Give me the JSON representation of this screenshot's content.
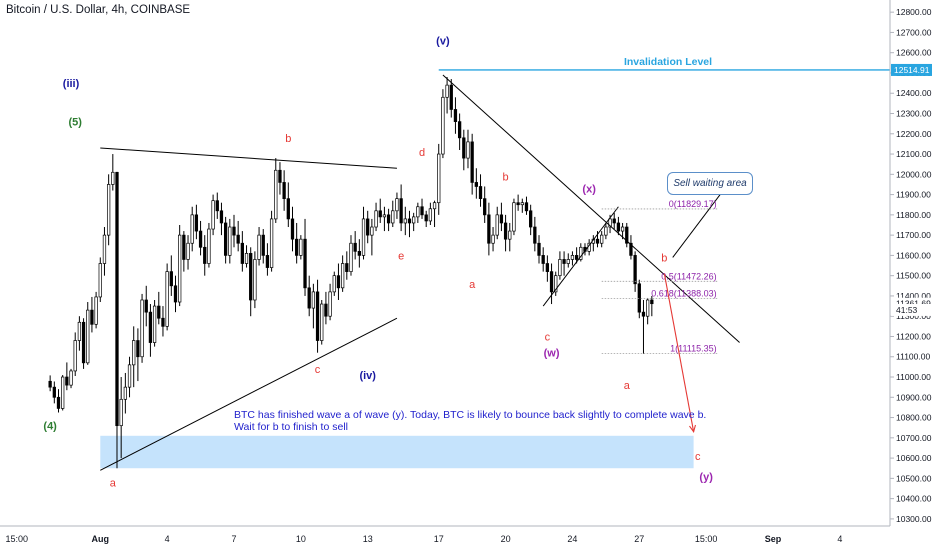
{
  "header": {
    "title": "Bitcoin / U.S. Dollar, 4h, COINBASE"
  },
  "note": {
    "line1": "BTC has finished wave a of wave (y). Today, BTC is likely to bounce back slightly to complete wave b.",
    "line2": "Wait for b to finish to sell"
  },
  "callout": {
    "text": "Sell waiting area"
  },
  "colors": {
    "up_candle": "#ffffff",
    "candle_stroke": "#000000",
    "resistance_line": "#29a5e0",
    "sell_zone": "#bbdefb",
    "wave_red": "#e53935",
    "wave_blue": "#1a1aa0",
    "wave_purple": "#9c27b0",
    "wave_green": "#2e7d32",
    "fib_label": "#8e24aa",
    "arrow": "#e53935"
  },
  "chart_data": {
    "type": "candlestick",
    "title": "Bitcoin / U.S. Dollar, 4h, COINBASE",
    "y_axis": {
      "position": "right",
      "ticks": [
        10300,
        10400,
        10500,
        10600,
        10700,
        10800,
        10900,
        11000,
        11100,
        11200,
        11300,
        11400,
        11500,
        11600,
        11700,
        11800,
        11900,
        12000,
        12100,
        12200,
        12300,
        12400,
        12500,
        12600,
        12700,
        12800
      ],
      "tick_labels": [
        "10300.00",
        "10400.00",
        "10500.00",
        "10600.00",
        "10700.00",
        "10800.00",
        "10900.00",
        "11000.00",
        "11100.00",
        "11200.00",
        "11300.00",
        "11400.00",
        "11500.00",
        "11600.00",
        "11700.00",
        "11800.00",
        "11900.00",
        "12000.00",
        "12100.00",
        "12200.00",
        "12300.00",
        "12400.00",
        "12500.00",
        "12600.00",
        "12700.00",
        "12800.00"
      ],
      "range": [
        10265,
        12860
      ],
      "price_tags": [
        {
          "label": "12514.91",
          "value": 12514.91,
          "style": "blue"
        },
        {
          "label": "11361.69",
          "value": 11361.69,
          "style": "plain"
        },
        {
          "label": "41:53",
          "value": 11331,
          "style": "plain"
        }
      ]
    },
    "x_axis": {
      "ticks": [
        "15:00",
        "Aug",
        "4",
        "7",
        "10",
        "13",
        "17",
        "20",
        "24",
        "27",
        "15:00",
        "Sep",
        "4"
      ],
      "tick_index": [
        -8,
        12,
        28,
        44,
        60,
        76,
        93,
        109,
        125,
        141,
        157,
        173,
        189
      ],
      "range_index": [
        -12,
        201
      ]
    },
    "candles": [
      [
        10979,
        11008,
        10930,
        10950
      ],
      [
        10950,
        10978,
        10870,
        10900
      ],
      [
        10900,
        10940,
        10825,
        10845
      ],
      [
        10845,
        11010,
        10835,
        11000
      ],
      [
        11000,
        11072,
        10935,
        10960
      ],
      [
        10960,
        11040,
        10945,
        11030
      ],
      [
        11030,
        11220,
        11005,
        11180
      ],
      [
        11180,
        11300,
        11130,
        11270
      ],
      [
        11270,
        11290,
        11040,
        11070
      ],
      [
        11070,
        11370,
        11060,
        11330
      ],
      [
        11330,
        11395,
        11220,
        11260
      ],
      [
        11260,
        11420,
        11240,
        11395
      ],
      [
        11395,
        11590,
        11370,
        11560
      ],
      [
        11560,
        11740,
        11500,
        11700
      ],
      [
        11700,
        12000,
        11650,
        11950
      ],
      [
        11950,
        12100,
        11920,
        12010
      ],
      [
        12010,
        12012,
        10550,
        10760
      ],
      [
        10760,
        11000,
        10600,
        10890
      ],
      [
        10890,
        11020,
        10820,
        10950
      ],
      [
        10950,
        11100,
        10900,
        11060
      ],
      [
        11060,
        11250,
        10950,
        11180
      ],
      [
        11180,
        11240,
        10980,
        11100
      ],
      [
        11100,
        11410,
        11070,
        11380
      ],
      [
        11380,
        11450,
        11250,
        11320
      ],
      [
        11320,
        11360,
        11100,
        11170
      ],
      [
        11170,
        11380,
        11150,
        11350
      ],
      [
        11350,
        11420,
        11260,
        11290
      ],
      [
        11290,
        11350,
        11200,
        11250
      ],
      [
        11250,
        11560,
        11230,
        11520
      ],
      [
        11520,
        11600,
        11400,
        11450
      ],
      [
        11450,
        11500,
        11320,
        11370
      ],
      [
        11370,
        11750,
        11350,
        11700
      ],
      [
        11700,
        11720,
        11520,
        11580
      ],
      [
        11580,
        11700,
        11530,
        11660
      ],
      [
        11660,
        11840,
        11620,
        11800
      ],
      [
        11800,
        11850,
        11680,
        11720
      ],
      [
        11720,
        11770,
        11600,
        11640
      ],
      [
        11640,
        11700,
        11500,
        11560
      ],
      [
        11560,
        11760,
        11540,
        11730
      ],
      [
        11730,
        11900,
        11700,
        11870
      ],
      [
        11870,
        11910,
        11780,
        11820
      ],
      [
        11820,
        11860,
        11700,
        11760
      ],
      [
        11760,
        11790,
        11560,
        11600
      ],
      [
        11600,
        11780,
        11560,
        11740
      ],
      [
        11740,
        11800,
        11640,
        11700
      ],
      [
        11700,
        11770,
        11620,
        11660
      ],
      [
        11660,
        11720,
        11520,
        11560
      ],
      [
        11560,
        11650,
        11540,
        11610
      ],
      [
        11610,
        11640,
        11300,
        11380
      ],
      [
        11380,
        11620,
        11340,
        11580
      ],
      [
        11580,
        11740,
        11550,
        11700
      ],
      [
        11700,
        11730,
        11560,
        11600
      ],
      [
        11600,
        11660,
        11500,
        11540
      ],
      [
        11540,
        11820,
        11520,
        11780
      ],
      [
        11780,
        12080,
        11760,
        12020
      ],
      [
        12020,
        12060,
        11900,
        11960
      ],
      [
        11960,
        12020,
        11820,
        11880
      ],
      [
        11880,
        11960,
        11740,
        11780
      ],
      [
        11780,
        11840,
        11620,
        11680
      ],
      [
        11680,
        11760,
        11560,
        11600
      ],
      [
        11600,
        11700,
        11580,
        11680
      ],
      [
        11680,
        11780,
        11400,
        11440
      ],
      [
        11440,
        11500,
        11300,
        11340
      ],
      [
        11340,
        11460,
        11240,
        11420
      ],
      [
        11420,
        11480,
        11120,
        11180
      ],
      [
        11180,
        11380,
        11160,
        11360
      ],
      [
        11360,
        11420,
        11260,
        11300
      ],
      [
        11300,
        11460,
        11280,
        11420
      ],
      [
        11420,
        11520,
        11400,
        11500
      ],
      [
        11500,
        11560,
        11380,
        11440
      ],
      [
        11440,
        11600,
        11420,
        11560
      ],
      [
        11560,
        11620,
        11480,
        11520
      ],
      [
        11520,
        11700,
        11500,
        11660
      ],
      [
        11660,
        11720,
        11580,
        11620
      ],
      [
        11620,
        11680,
        11540,
        11600
      ],
      [
        11600,
        11840,
        11580,
        11780
      ],
      [
        11780,
        11820,
        11660,
        11700
      ],
      [
        11700,
        11780,
        11600,
        11740
      ],
      [
        11740,
        11860,
        11720,
        11820
      ],
      [
        11820,
        11880,
        11760,
        11790
      ],
      [
        11790,
        11840,
        11720,
        11800
      ],
      [
        11800,
        11830,
        11720,
        11760
      ],
      [
        11760,
        11870,
        11740,
        11820
      ],
      [
        11820,
        11910,
        11780,
        11880
      ],
      [
        11880,
        11950,
        11720,
        11760
      ],
      [
        11760,
        11840,
        11700,
        11780
      ],
      [
        11780,
        11820,
        11690,
        11760
      ],
      [
        11760,
        11810,
        11720,
        11790
      ],
      [
        11790,
        11860,
        11760,
        11840
      ],
      [
        11840,
        11880,
        11780,
        11800
      ],
      [
        11800,
        11820,
        11740,
        11770
      ],
      [
        11770,
        11860,
        11750,
        11830
      ],
      [
        11830,
        11870,
        11740,
        11860
      ],
      [
        11860,
        12150,
        11800,
        12100
      ],
      [
        12100,
        12420,
        12080,
        12380
      ],
      [
        12380,
        12480,
        12300,
        12440
      ],
      [
        12440,
        12470,
        12280,
        12320
      ],
      [
        12320,
        12380,
        12200,
        12260
      ],
      [
        12260,
        12300,
        12120,
        12180
      ],
      [
        12180,
        12220,
        12020,
        12080
      ],
      [
        12080,
        12220,
        12030,
        12160
      ],
      [
        12160,
        12200,
        11900,
        11960
      ],
      [
        11960,
        12030,
        11880,
        11940
      ],
      [
        11940,
        12000,
        11840,
        11880
      ],
      [
        11880,
        11940,
        11760,
        11800
      ],
      [
        11800,
        11860,
        11600,
        11660
      ],
      [
        11660,
        11740,
        11620,
        11700
      ],
      [
        11700,
        11840,
        11680,
        11800
      ],
      [
        11800,
        11860,
        11720,
        11760
      ],
      [
        11760,
        11800,
        11620,
        11680
      ],
      [
        11680,
        11760,
        11620,
        11720
      ],
      [
        11720,
        11880,
        11700,
        11860
      ],
      [
        11860,
        11900,
        11820,
        11850
      ],
      [
        11850,
        11880,
        11810,
        11860
      ],
      [
        11860,
        11890,
        11800,
        11820
      ],
      [
        11820,
        11850,
        11700,
        11740
      ],
      [
        11740,
        11790,
        11620,
        11660
      ],
      [
        11660,
        11700,
        11560,
        11600
      ],
      [
        11600,
        11640,
        11520,
        11560
      ],
      [
        11560,
        11600,
        11470,
        11520
      ],
      [
        11520,
        11560,
        11360,
        11420
      ],
      [
        11420,
        11520,
        11400,
        11500
      ],
      [
        11500,
        11620,
        11480,
        11580
      ],
      [
        11580,
        11620,
        11500,
        11560
      ],
      [
        11560,
        11610,
        11540,
        11580
      ],
      [
        11580,
        11620,
        11550,
        11600
      ],
      [
        11600,
        11640,
        11560,
        11580
      ],
      [
        11580,
        11660,
        11570,
        11640
      ],
      [
        11640,
        11660,
        11600,
        11620
      ],
      [
        11620,
        11680,
        11600,
        11660
      ],
      [
        11660,
        11700,
        11620,
        11680
      ],
      [
        11680,
        11720,
        11640,
        11660
      ],
      [
        11660,
        11720,
        11640,
        11700
      ],
      [
        11700,
        11760,
        11680,
        11740
      ],
      [
        11740,
        11800,
        11710,
        11780
      ],
      [
        11780,
        11810,
        11730,
        11760
      ],
      [
        11760,
        11790,
        11700,
        11720
      ],
      [
        11720,
        11760,
        11680,
        11740
      ],
      [
        11740,
        11760,
        11640,
        11660
      ],
      [
        11660,
        11700,
        11580,
        11600
      ],
      [
        11600,
        11620,
        11420,
        11460
      ],
      [
        11460,
        11480,
        11290,
        11320
      ],
      [
        11320,
        11380,
        11115,
        11300
      ],
      [
        11300,
        11390,
        11260,
        11380
      ],
      [
        11380,
        11400,
        11300,
        11361.69
      ]
    ],
    "annotations": {
      "wave_labels": [
        {
          "text": "(iii)",
          "idx": 5,
          "price": 12430,
          "color": "wave_blue"
        },
        {
          "text": "(5)",
          "idx": 6,
          "price": 12240,
          "color": "wave_green"
        },
        {
          "text": "(4)",
          "idx": 0,
          "price": 10740,
          "color": "wave_green"
        },
        {
          "text": "a",
          "idx": 15,
          "price": 10460,
          "color": "wave_red"
        },
        {
          "text": "b",
          "idx": 57,
          "price": 12160,
          "color": "wave_red"
        },
        {
          "text": "c",
          "idx": 64,
          "price": 11020,
          "color": "wave_red"
        },
        {
          "text": "d",
          "idx": 89,
          "price": 12090,
          "color": "wave_red"
        },
        {
          "text": "e",
          "idx": 84,
          "price": 11580,
          "color": "wave_red"
        },
        {
          "text": "(iv)",
          "idx": 76,
          "price": 10990,
          "color": "wave_blue"
        },
        {
          "text": "(v)",
          "idx": 94,
          "price": 12640,
          "color": "wave_blue"
        },
        {
          "text": "a",
          "idx": 101,
          "price": 11440,
          "color": "wave_red"
        },
        {
          "text": "b",
          "idx": 109,
          "price": 11970,
          "color": "wave_red"
        },
        {
          "text": "c",
          "idx": 119,
          "price": 11180,
          "color": "wave_red"
        },
        {
          "text": "(w)",
          "idx": 120,
          "price": 11100,
          "color": "wave_purple"
        },
        {
          "text": "(x)",
          "idx": 129,
          "price": 11910,
          "color": "wave_purple"
        },
        {
          "text": "a",
          "idx": 138,
          "price": 10940,
          "color": "wave_red"
        },
        {
          "text": "b",
          "idx": 147,
          "price": 11570,
          "color": "wave_red"
        },
        {
          "text": "c",
          "idx": 155,
          "price": 10590,
          "color": "wave_red"
        },
        {
          "text": "(y)",
          "idx": 157,
          "price": 10490,
          "color": "wave_purple"
        }
      ],
      "resistance": {
        "label": "Invalidation Level",
        "value": 12514.91
      },
      "fib_levels": [
        {
          "label": "0(11829.17)",
          "value": 11829.17
        },
        {
          "label": "0.5(11472.26)",
          "value": 11472.26
        },
        {
          "label": "0.618(11388.03)",
          "value": 11388.03
        },
        {
          "label": "1(11115.35)",
          "value": 11115.35
        }
      ],
      "fib_range_idx": [
        132,
        160
      ],
      "sell_zone": {
        "from_idx": 12,
        "to_idx": 154,
        "low": 10550,
        "high": 10710
      },
      "trend_lines": [
        {
          "from": [
            12,
            12130
          ],
          "to": [
            83,
            12030
          ]
        },
        {
          "from": [
            12,
            10540
          ],
          "to": [
            83,
            11290
          ]
        },
        {
          "from": [
            94,
            12490
          ],
          "to": [
            165,
            11170
          ]
        },
        {
          "from": [
            118,
            11350
          ],
          "to": [
            136,
            11840
          ]
        },
        {
          "from": [
            149,
            11590
          ],
          "to": [
            164,
            12000
          ]
        }
      ],
      "arrow": {
        "from": [
          147,
          11510
        ],
        "to": [
          154,
          10730
        ]
      }
    }
  }
}
